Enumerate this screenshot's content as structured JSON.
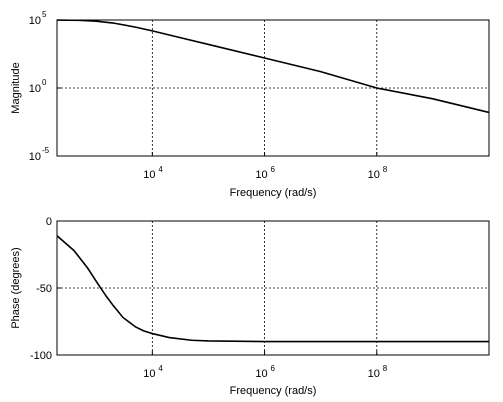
{
  "chart_data": [
    {
      "type": "line",
      "xscale": "log",
      "yscale": "log",
      "xlim": [
        200,
        10000000000
      ],
      "ylim": [
        1e-05,
        100000
      ],
      "grid": true,
      "xlabel": "Frequency (rad/s)",
      "ylabel": "Magnitude",
      "xticks": [
        {
          "base": "10",
          "exp": "4",
          "value": 10000
        },
        {
          "base": "10",
          "exp": "6",
          "value": 1000000
        },
        {
          "base": "10",
          "exp": "8",
          "value": 100000000
        }
      ],
      "yticks": [
        {
          "base": "10",
          "exp": "5",
          "value": 100000
        },
        {
          "base": "10",
          "exp": "0",
          "value": 1
        },
        {
          "base": "10",
          "exp": "-5",
          "value": 1e-05
        }
      ],
      "series": [
        {
          "x": [
            200,
            500,
            1000,
            2000,
            5000,
            10000,
            30000,
            100000,
            1000000,
            10000000,
            100000000,
            1000000000,
            10000000000
          ],
          "y": [
            99000,
            94000,
            82000,
            60000,
            30000,
            15800,
            5300,
            1600,
            160,
            16,
            1,
            0.16,
            0.016
          ]
        }
      ]
    },
    {
      "type": "line",
      "xscale": "log",
      "xlim": [
        200,
        10000000000
      ],
      "ylim": [
        -100,
        0
      ],
      "grid": true,
      "xlabel": "Frequency (rad/s)",
      "ylabel": "Phase (degrees)",
      "xticks": [
        {
          "base": "10",
          "exp": "4",
          "value": 10000
        },
        {
          "base": "10",
          "exp": "6",
          "value": 1000000
        },
        {
          "base": "10",
          "exp": "8",
          "value": 100000000
        }
      ],
      "yticks": [
        {
          "label": "0",
          "value": 0
        },
        {
          "label": "-50",
          "value": -50
        },
        {
          "label": "-100",
          "value": -100
        }
      ],
      "series": [
        {
          "x": [
            200,
            400,
            700,
            1000,
            1500,
            2000,
            3000,
            5000,
            7000,
            10000,
            20000,
            50000,
            100000,
            1000000,
            10000000000
          ],
          "y": [
            -11,
            -22,
            -35,
            -45,
            -56,
            -63,
            -72,
            -79,
            -82,
            -84,
            -87,
            -89,
            -89.5,
            -90,
            -90
          ]
        }
      ]
    }
  ]
}
